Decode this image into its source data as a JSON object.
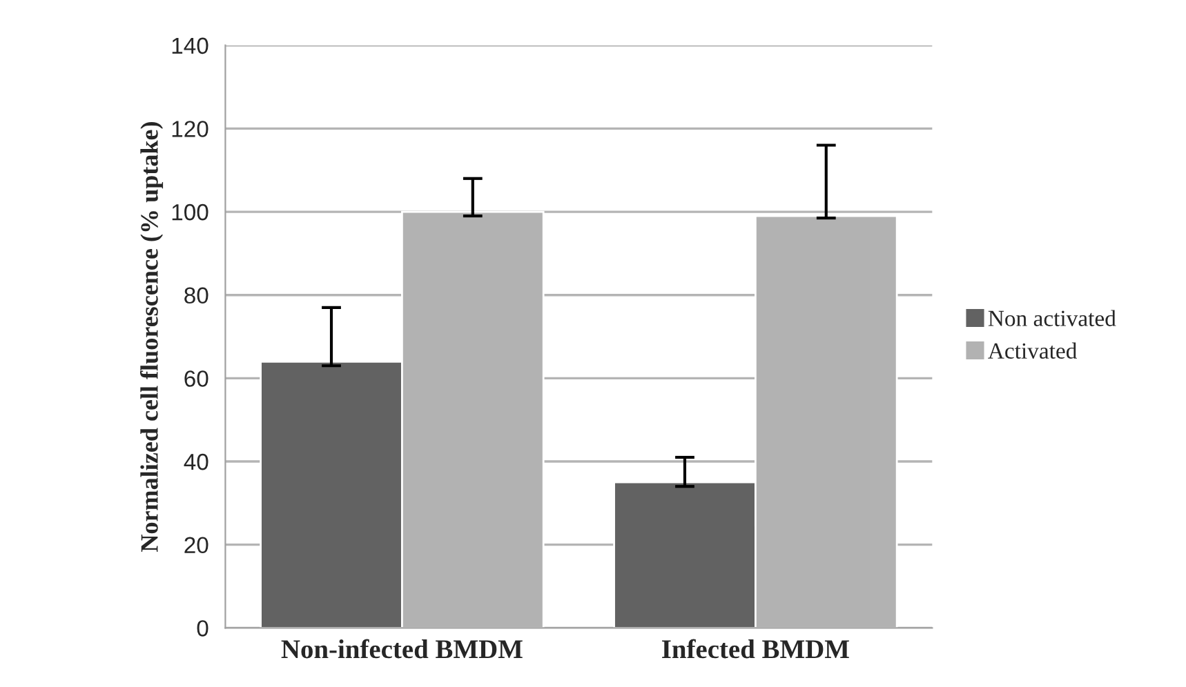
{
  "chart_data": {
    "type": "bar",
    "ylabel": "Normalized cell fluorescence (% uptake)",
    "categories": [
      "Non-infected BMDM",
      "Infected BMDM"
    ],
    "series": [
      {
        "name": "Non activated",
        "color": "#626262",
        "values": [
          64,
          35
        ],
        "errors": [
          [
            63,
            77
          ],
          [
            34,
            41
          ]
        ]
      },
      {
        "name": "Activated",
        "color": "#b2b2b2",
        "values": [
          100,
          99
        ],
        "errors": [
          [
            99,
            108
          ],
          [
            98.5,
            116
          ]
        ]
      }
    ],
    "ylim": [
      0,
      140
    ],
    "yticks": [
      0,
      20,
      40,
      60,
      80,
      100,
      120,
      140
    ],
    "grid": "y",
    "legend": "right"
  }
}
